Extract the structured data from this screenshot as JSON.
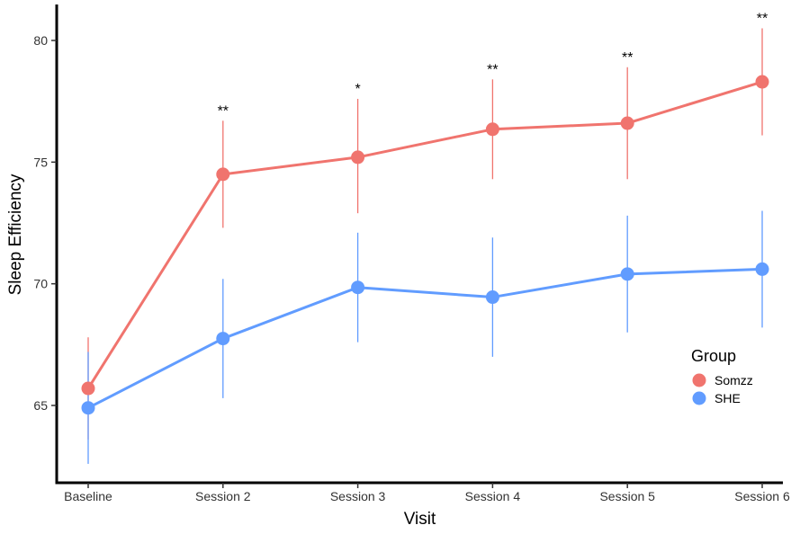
{
  "chart_data": {
    "type": "line",
    "title": "",
    "xlabel": "Visit",
    "ylabel": "Sleep Efficiency",
    "categories": [
      "Baseline",
      "Session 2",
      "Session 3",
      "Session 4",
      "Session 5",
      "Session 6"
    ],
    "ylim": [
      62,
      81.5
    ],
    "yticks": [
      65,
      70,
      75,
      80
    ],
    "grid": false,
    "legend": {
      "title": "Group",
      "position": "right",
      "entries": [
        "Somzz",
        "SHE"
      ]
    },
    "series": [
      {
        "name": "Somzz",
        "color": "#F0746E",
        "values": [
          65.7,
          74.5,
          75.2,
          76.35,
          76.6,
          78.3
        ],
        "lower": [
          63.6,
          72.3,
          72.9,
          74.3,
          74.3,
          76.1
        ],
        "upper": [
          67.8,
          76.7,
          77.6,
          78.4,
          78.9,
          80.5
        ]
      },
      {
        "name": "SHE",
        "color": "#619CFF",
        "values": [
          64.9,
          67.75,
          69.85,
          69.45,
          70.4,
          70.6
        ],
        "lower": [
          62.6,
          65.3,
          67.6,
          67.0,
          68.0,
          68.2
        ],
        "upper": [
          67.2,
          70.2,
          72.1,
          71.9,
          72.8,
          73.0
        ]
      }
    ],
    "annotations": [
      "",
      "**",
      "*",
      "**",
      "**",
      "**"
    ]
  }
}
